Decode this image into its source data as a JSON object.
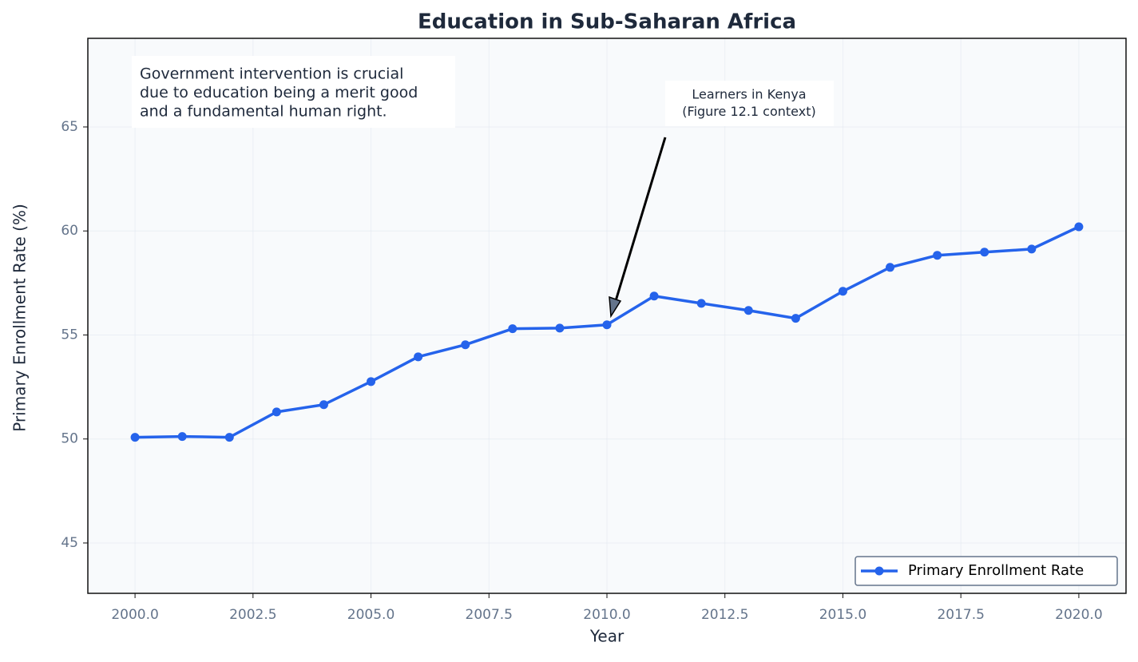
{
  "chart_data": {
    "type": "line",
    "title": "Education in Sub-Saharan Africa",
    "x_label": "Year",
    "y_label": "Primary Enrollment Rate (%)",
    "x": [
      2000,
      2001,
      2002,
      2003,
      2004,
      2005,
      2006,
      2007,
      2008,
      2009,
      2010,
      2011,
      2012,
      2013,
      2014,
      2015,
      2016,
      2017,
      2018,
      2019,
      2020
    ],
    "series": [
      {
        "name": "Primary Enrollment Rate",
        "color": "#2563eb",
        "values": [
          50.08,
          50.12,
          50.08,
          51.3,
          51.65,
          52.76,
          53.95,
          54.53,
          55.3,
          55.33,
          55.49,
          56.87,
          56.52,
          56.18,
          55.8,
          57.1,
          58.25,
          58.83,
          58.98,
          59.13,
          60.2
        ]
      }
    ],
    "xlim": [
      1999,
      2021
    ],
    "ylim": [
      42.58,
      69.26
    ],
    "xticks": [
      {
        "value": 2000,
        "label": "2000.0"
      },
      {
        "value": 2002.5,
        "label": "2002.5"
      },
      {
        "value": 2005,
        "label": "2005.0"
      },
      {
        "value": 2007.5,
        "label": "2007.5"
      },
      {
        "value": 2010,
        "label": "2010.0"
      },
      {
        "value": 2012.5,
        "label": "2012.5"
      },
      {
        "value": 2015,
        "label": "2015.0"
      },
      {
        "value": 2017.5,
        "label": "2017.5"
      },
      {
        "value": 2020,
        "label": "2020.0"
      }
    ],
    "yticks": [
      45,
      50,
      55,
      60,
      65
    ],
    "grid": true,
    "legend": "lower right",
    "annotations": [
      {
        "lines": [
          "Government intervention is crucial",
          "due to education being a merit good",
          "and a fundamental human right."
        ]
      },
      {
        "lines": [
          "Learners in Kenya",
          "(Figure 12.1 context)"
        ]
      }
    ]
  }
}
